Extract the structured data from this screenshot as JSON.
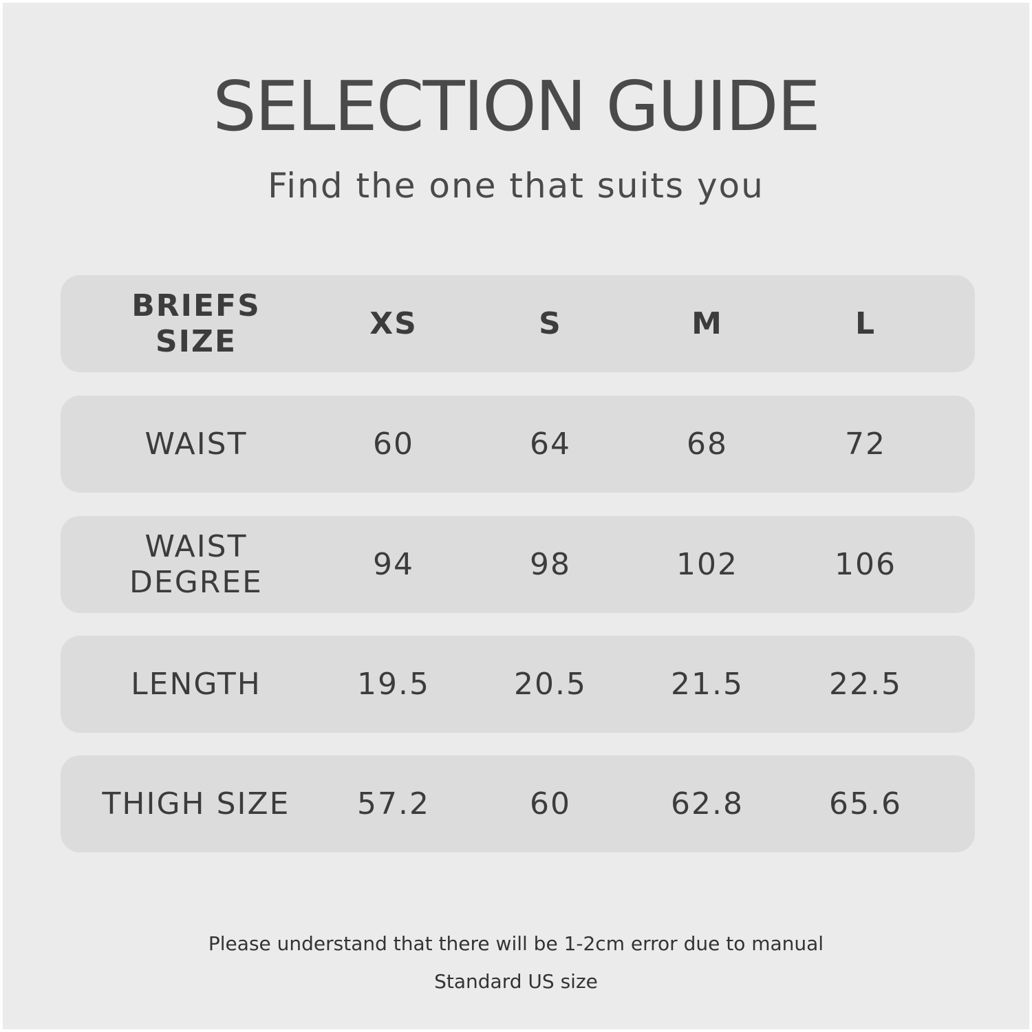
{
  "title": "SELECTION GUIDE",
  "subtitle": "Find the one that suits you",
  "table": {
    "header": {
      "label": "BRIEFS\nSIZE",
      "sizes": [
        "XS",
        "S",
        "M",
        "L"
      ]
    },
    "rows": [
      {
        "label": "WAIST",
        "values": [
          "60",
          "64",
          "68",
          "72"
        ]
      },
      {
        "label": "WAIST\nDEGREE",
        "values": [
          "94",
          "98",
          "102",
          "106"
        ]
      },
      {
        "label": "LENGTH",
        "values": [
          "19.5",
          "20.5",
          "21.5",
          "22.5"
        ]
      },
      {
        "label": "THIGH SIZE",
        "values": [
          "57.2",
          "60",
          "62.8",
          "65.6"
        ]
      }
    ]
  },
  "notes": [
    "Please understand that there will be 1-2cm error due to manual",
    "Standard US size"
  ],
  "colors": {
    "background": "#ebebeb",
    "row": "#dcdcdc",
    "text": "#3c3c3c"
  }
}
